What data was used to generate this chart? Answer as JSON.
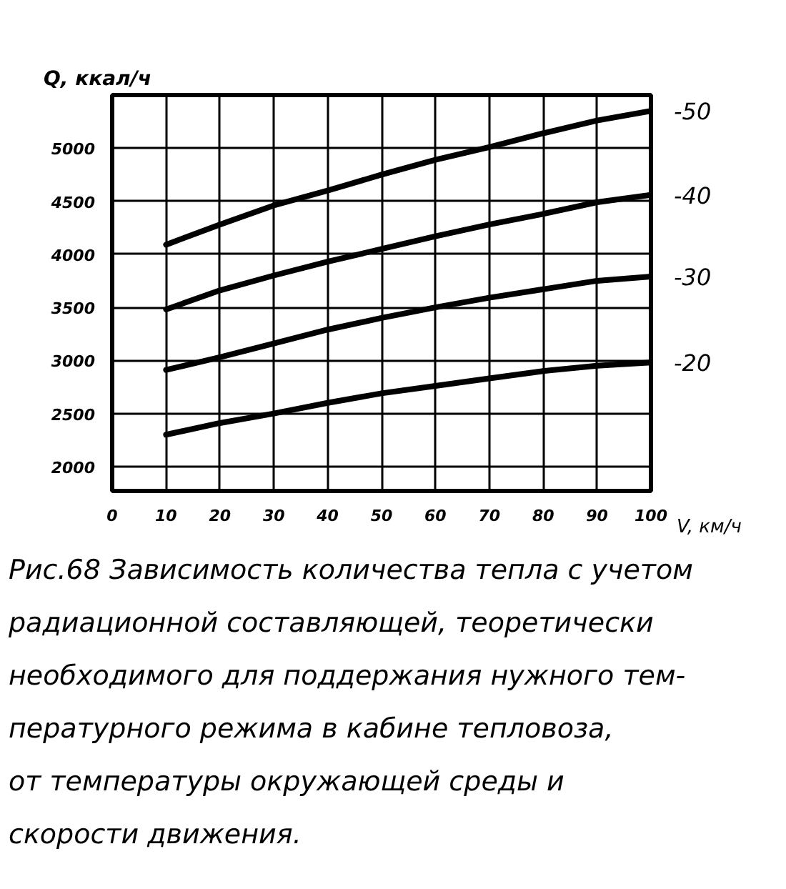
{
  "chart_data": {
    "type": "line",
    "x": [
      10,
      20,
      30,
      40,
      50,
      60,
      70,
      80,
      90,
      100
    ],
    "xlim": [
      0,
      100
    ],
    "xticks": [
      0,
      10,
      20,
      30,
      40,
      50,
      60,
      70,
      80,
      90,
      100
    ],
    "ylim": [
      1770,
      5500
    ],
    "yticks": [
      2000,
      2500,
      3000,
      3500,
      4000,
      4500,
      5000
    ],
    "xlabel": "V, км/ч",
    "ylabel": "Q, ккал/ч",
    "grid": true,
    "series": [
      {
        "name": "-50",
        "color": "#000000",
        "values": [
          4090,
          4280,
          4460,
          4600,
          4750,
          4890,
          5010,
          5140,
          5260,
          5350
        ]
      },
      {
        "name": "-40",
        "color": "#000000",
        "values": [
          3480,
          3660,
          3800,
          3930,
          4050,
          4170,
          4280,
          4380,
          4490,
          4560
        ]
      },
      {
        "name": "-30",
        "color": "#000000",
        "values": [
          2910,
          3030,
          3160,
          3290,
          3400,
          3500,
          3590,
          3670,
          3750,
          3790
        ]
      },
      {
        "name": "-20",
        "color": "#000000",
        "values": [
          2300,
          2410,
          2500,
          2600,
          2690,
          2760,
          2830,
          2900,
          2950,
          2980
        ]
      }
    ],
    "annotations": [
      "Рис.68 Зависимость количества тепла с учетом\nрадиационной составляющей, теоретически\nнеобходимого для поддержания нужного тем-\nпературного режима в кабине тепловоза,\nот температуры окружающей среды и\nскорости движения."
    ]
  }
}
